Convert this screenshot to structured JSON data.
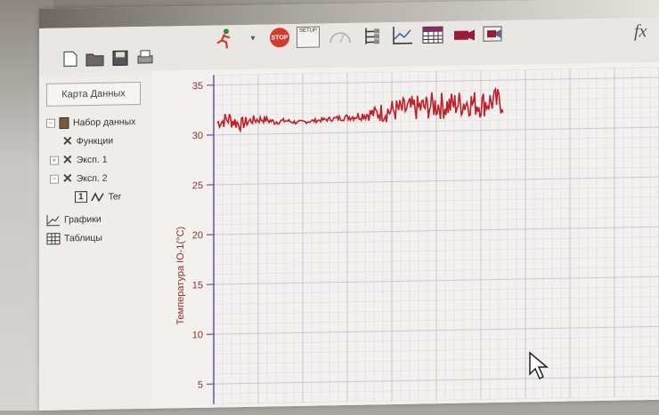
{
  "window": {
    "formula_label": "fx"
  },
  "toolbar": {
    "stop_label": "STOP",
    "setup_label": "SETUP",
    "buttons": [
      "new-file",
      "open-folder",
      "save",
      "print",
      "run",
      "stop",
      "setup",
      "zero",
      "data-map",
      "graph",
      "table",
      "camera",
      "video"
    ]
  },
  "sidebar": {
    "tab_label": "Карта Данных",
    "tree": [
      {
        "label": "Набор данных",
        "level": 0,
        "expander": "−",
        "icon": "dataset-icon"
      },
      {
        "label": "Функции",
        "level": 1,
        "expander": "",
        "icon": "tool-icon"
      },
      {
        "label": "Эксп. 1",
        "level": 1,
        "expander": "+",
        "icon": "tool-icon"
      },
      {
        "label": "Эксп. 2",
        "level": 1,
        "expander": "−",
        "icon": "tool-icon"
      },
      {
        "label": "Ter",
        "level": 2,
        "expander": "",
        "icon": "sensor-icon",
        "sensor_number": "1"
      },
      {
        "label": "Графики",
        "level": 0,
        "expander": "",
        "icon": "graph-icon"
      },
      {
        "label": "Таблицы",
        "level": 0,
        "expander": "",
        "icon": "table-icon"
      }
    ]
  },
  "chart_data": {
    "type": "line",
    "ylabel": "Температура IO-1(°C)",
    "yticks": [
      5,
      10,
      15,
      20,
      25,
      30,
      35
    ],
    "ylim": [
      3,
      36
    ],
    "grid": true,
    "series": [
      {
        "color": "#c0202a",
        "x": [
          0,
          4,
          8,
          12,
          16,
          20,
          24,
          28,
          32,
          36,
          40,
          44,
          48,
          52,
          56,
          60,
          64,
          68,
          72,
          76,
          80,
          84,
          88,
          92,
          96,
          100
        ],
        "values": [
          31.2,
          31.6,
          31.0,
          31.4,
          31.5,
          31.2,
          31.3,
          31.1,
          31.2,
          31.3,
          31.4,
          31.5,
          31.6,
          31.8,
          31.9,
          32.1,
          32.2,
          32.3,
          32.4,
          32.6,
          32.5,
          32.7,
          32.8,
          32.6,
          32.9,
          32.8
        ],
        "noise_amplitude": [
          0.6,
          0.9,
          0.7,
          0.5,
          0.4,
          0.3,
          0.25,
          0.2,
          0.2,
          0.2,
          0.25,
          0.3,
          0.4,
          0.6,
          0.9,
          1.2,
          1.2,
          1.3,
          1.3,
          1.4,
          1.4,
          1.4,
          1.4,
          1.4,
          1.4,
          1.4
        ]
      }
    ]
  }
}
